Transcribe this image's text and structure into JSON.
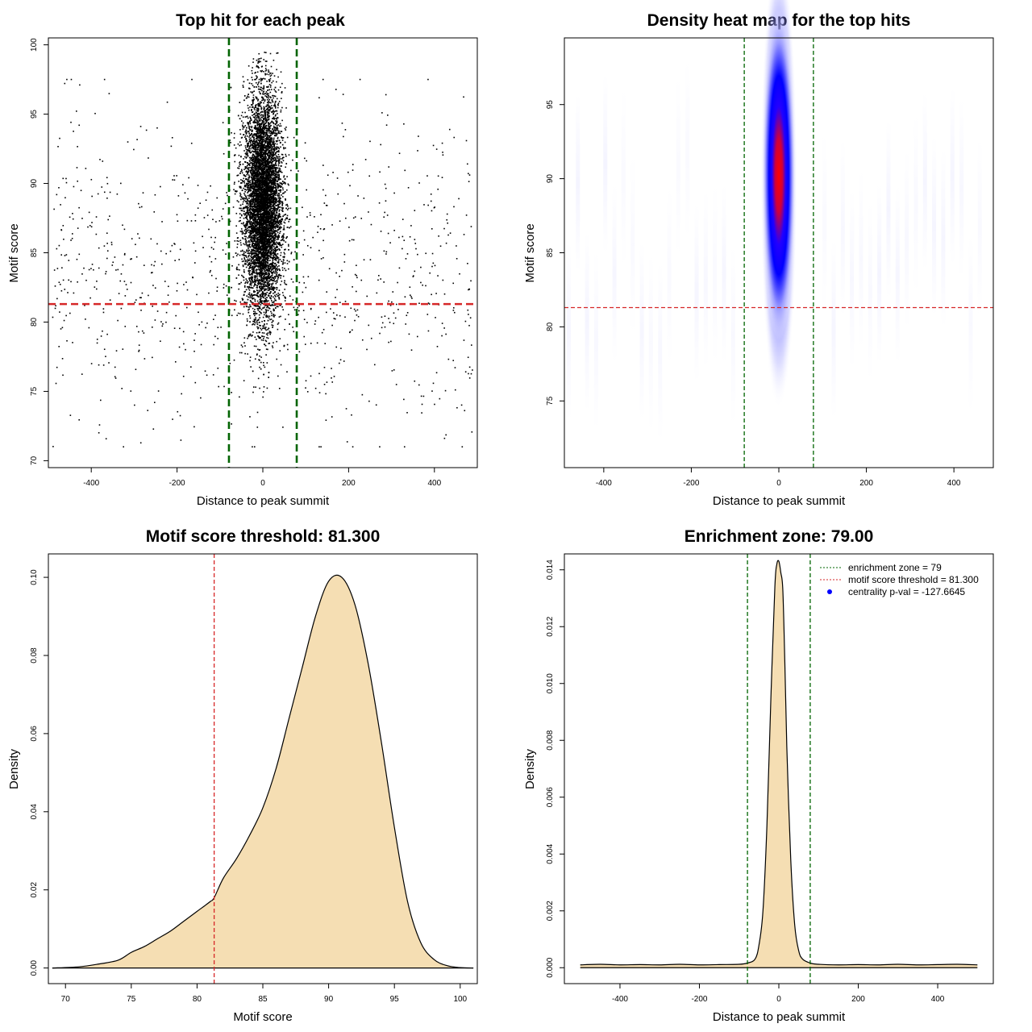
{
  "chart_data": [
    {
      "id": "scatter",
      "type": "scatter",
      "title": "Top hit for each peak",
      "xlabel": "Distance to peak summit",
      "ylabel": "Motif score",
      "xlim": [
        -500,
        500
      ],
      "ylim": [
        69.5,
        100.5
      ],
      "xticks": [
        -400,
        -200,
        0,
        200,
        400
      ],
      "yticks": [
        70,
        75,
        80,
        85,
        90,
        95,
        100
      ],
      "ytick_rotated": true,
      "vlines": [
        {
          "x": -79,
          "color": "#006400",
          "style": "dashed"
        },
        {
          "x": 79,
          "color": "#006400",
          "style": "dashed"
        }
      ],
      "hlines": [
        {
          "y": 81.3,
          "color": "#d62728",
          "style": "dashed"
        }
      ],
      "points": {
        "central_cluster": {
          "x_center": 0,
          "x_sd": 22,
          "y_center": 88.5,
          "y_sd": 4,
          "y_range": [
            72,
            99.5
          ],
          "approx_count": 8000
        },
        "background": {
          "x_range": [
            -490,
            490
          ],
          "y_range": [
            71,
            97.5
          ],
          "approx_count": 900
        }
      },
      "grid": false
    },
    {
      "id": "heatmap",
      "type": "heatmap",
      "title": "Density heat map for the top hits",
      "xlabel": "Distance to peak summit",
      "ylabel": "Motif score",
      "xlim": [
        -490,
        490
      ],
      "ylim": [
        70.5,
        99.5
      ],
      "xticks": [
        -400,
        -200,
        0,
        200,
        400
      ],
      "yticks": [
        75,
        80,
        85,
        90,
        95
      ],
      "ytick_rotated": true,
      "colormap": [
        "#ffffff",
        "#0000ff",
        "#ff0000"
      ],
      "peak": {
        "x": 0,
        "y": 90.5
      },
      "vlines": [
        {
          "x": -79,
          "color": "#006400",
          "style": "dashed"
        },
        {
          "x": 79,
          "color": "#006400",
          "style": "dashed"
        }
      ],
      "hlines": [
        {
          "y": 81.3,
          "color": "#d62728",
          "style": "dashed"
        }
      ],
      "grid": false
    },
    {
      "id": "scoredens",
      "type": "area",
      "title": "Motif score threshold: 81.300",
      "xlabel": "Motif score",
      "ylabel": "Density",
      "xlim": [
        68.7,
        101.3
      ],
      "ylim": [
        -0.004,
        0.106
      ],
      "xticks": [
        70,
        75,
        80,
        85,
        90,
        95,
        100
      ],
      "yticks": [
        0.0,
        0.02,
        0.04,
        0.06,
        0.08,
        0.1
      ],
      "ytick_labels": [
        "0.00",
        "0.02",
        "0.04",
        "0.06",
        "0.08",
        "0.10"
      ],
      "ytick_rotated": true,
      "fill": "#f5deb3",
      "x": [
        69,
        71,
        72.5,
        74,
        75,
        76,
        77,
        78,
        79,
        80,
        81,
        81.3,
        82,
        83,
        84,
        85,
        86,
        87,
        88,
        89,
        90,
        91,
        92,
        93,
        94,
        95,
        96,
        97,
        98,
        99,
        100,
        101
      ],
      "y": [
        0.0,
        0.0003,
        0.001,
        0.002,
        0.004,
        0.0055,
        0.0075,
        0.0095,
        0.012,
        0.0145,
        0.017,
        0.018,
        0.023,
        0.028,
        0.034,
        0.041,
        0.051,
        0.064,
        0.077,
        0.09,
        0.099,
        0.1,
        0.093,
        0.078,
        0.058,
        0.036,
        0.017,
        0.0065,
        0.0022,
        0.0006,
        0.0001,
        0.0
      ],
      "vlines": [
        {
          "x": 81.3,
          "color": "#d62728",
          "style": "dashed"
        }
      ],
      "grid": false
    },
    {
      "id": "distdens",
      "type": "area",
      "title": "Enrichment zone: 79.00",
      "xlabel": "Distance to peak summit",
      "ylabel": "Density",
      "xlim": [
        -540,
        540
      ],
      "ylim": [
        -0.00056,
        0.01456
      ],
      "xticks": [
        -400,
        -200,
        0,
        200,
        400
      ],
      "yticks": [
        0.0,
        0.002,
        0.004,
        0.006,
        0.008,
        0.01,
        0.012,
        0.014
      ],
      "ytick_labels": [
        "0.000",
        "0.002",
        "0.004",
        "0.006",
        "0.008",
        "0.010",
        "0.012",
        "0.014"
      ],
      "ytick_rotated": true,
      "fill": "#f5deb3",
      "x": [
        -500,
        -450,
        -400,
        -350,
        -300,
        -250,
        -200,
        -150,
        -100,
        -80,
        -60,
        -50,
        -40,
        -30,
        -20,
        -10,
        -5,
        0,
        5,
        10,
        15,
        20,
        30,
        40,
        50,
        60,
        80,
        100,
        150,
        200,
        250,
        300,
        350,
        400,
        450,
        500
      ],
      "y": [
        0.0001,
        0.00012,
        0.0001,
        0.00011,
        0.0001,
        0.00012,
        0.0001,
        0.00011,
        0.00012,
        0.00016,
        0.0003,
        0.0008,
        0.002,
        0.005,
        0.0095,
        0.0134,
        0.0142,
        0.0143,
        0.0139,
        0.0133,
        0.0108,
        0.0078,
        0.0038,
        0.0015,
        0.0006,
        0.0003,
        0.00016,
        0.00012,
        0.0001,
        0.00011,
        0.0001,
        0.00012,
        0.0001,
        0.00011,
        0.00012,
        0.0001
      ],
      "vlines": [
        {
          "x": -79,
          "color": "#006400",
          "style": "dashed"
        },
        {
          "x": 79,
          "color": "#006400",
          "style": "dashed"
        }
      ],
      "legend": {
        "position": "top-right",
        "entries": [
          {
            "label": "enrichment zone = 79",
            "color": "#006400",
            "kind": "dotted-line"
          },
          {
            "label": "motif score threshold = 81.300",
            "color": "#d62728",
            "kind": "dotted-line"
          },
          {
            "label": "centrality p-val = -127.6645",
            "color": "#0000ff",
            "kind": "point"
          }
        ]
      },
      "grid": false
    }
  ]
}
